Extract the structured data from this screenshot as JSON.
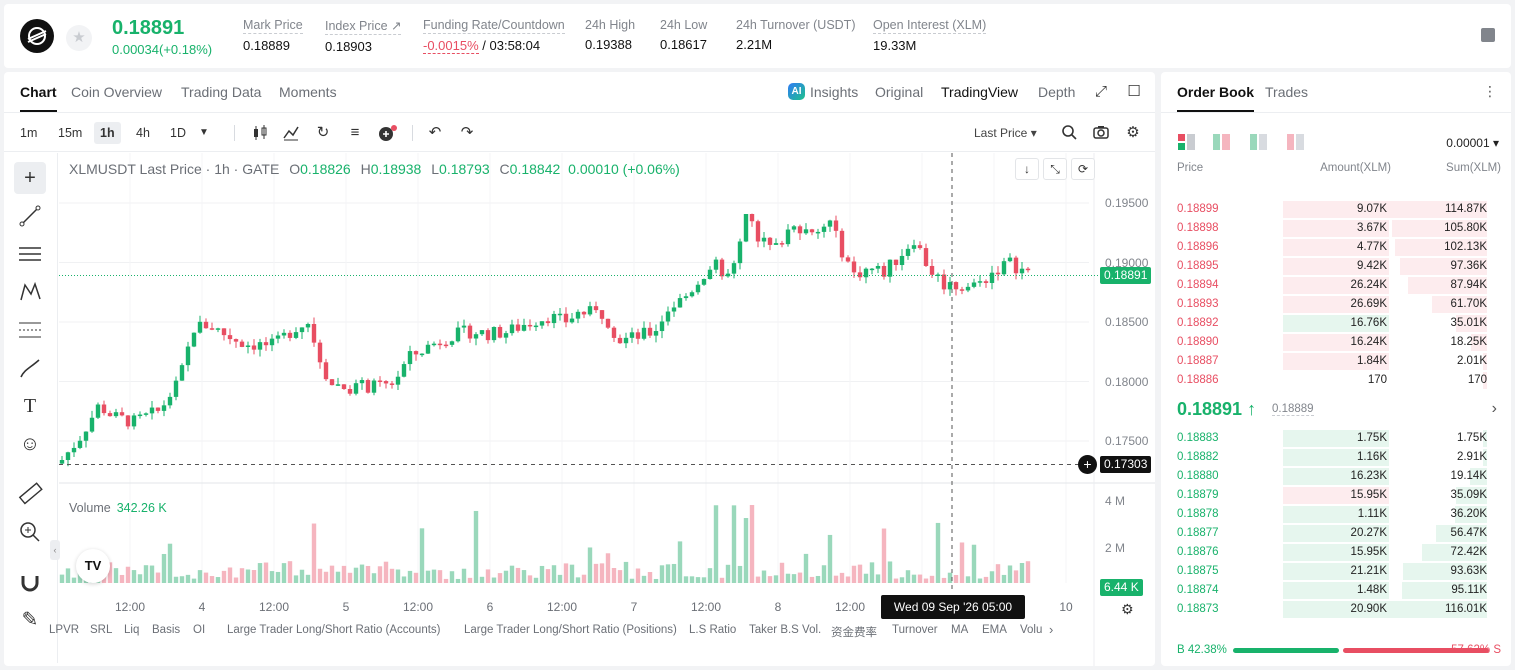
{
  "header": {
    "last_price": "0.18891",
    "change": "0.00034(+0.18%)",
    "stats": [
      {
        "label": "Mark Price",
        "value": "0.18889"
      },
      {
        "label": "Index Price ↗",
        "value": "0.18903"
      },
      {
        "label": "Funding Rate/Countdown",
        "value_neg": "-0.0015%",
        "value": "/ 03:58:04"
      },
      {
        "label": "24h High",
        "value": "0.19388"
      },
      {
        "label": "24h Low",
        "value": "0.18617"
      },
      {
        "label": "24h Turnover (USDT)",
        "value": "2.21M"
      },
      {
        "label": "Open Interest (XLM)",
        "value": "19.33M"
      }
    ]
  },
  "chart_tabs": [
    "Chart",
    "Coin Overview",
    "Trading Data",
    "Moments"
  ],
  "view_tabs": [
    "Insights",
    "Original",
    "TradingView",
    "Depth"
  ],
  "ai_badge": "AI",
  "timeframes": [
    "1m",
    "15m",
    "1h",
    "4h",
    "1D"
  ],
  "price_type": "Last Price ▾",
  "legend": {
    "symbol": "XLMUSDT Last Price · 1h · GATE",
    "o": "0.18826",
    "h": "0.18938",
    "l": "0.18793",
    "c": "0.18842",
    "chg": "0.00010 (+0.06%)"
  },
  "volume_legend": {
    "label": "Volume",
    "value": "342.26 K"
  },
  "y_ticks": [
    "0.19500",
    "0.19000",
    "0.18500",
    "0.18000",
    "0.17500"
  ],
  "vol_ticks": [
    "4 M",
    "2 M"
  ],
  "current_price_tag": "0.18891",
  "crosshair_price_tag": "0.17303",
  "volume_tag": "6.44 K",
  "x_ticks": [
    "12:00",
    "4",
    "12:00",
    "5",
    "12:00",
    "6",
    "12:00",
    "7",
    "12:00",
    "8",
    "12:00",
    "10"
  ],
  "crosshair_date": "Wed 09 Sep '26    05:00",
  "indicators": [
    "LPVR",
    "SRL",
    "Liq",
    "Basis",
    "OI",
    "Large Trader Long/Short Ratio (Accounts)",
    "Large Trader Long/Short Ratio (Positions)",
    "L.S Ratio",
    "Taker B.S Vol.",
    "资金费率",
    "Turnover",
    "MA",
    "EMA",
    "Volu"
  ],
  "order_book": {
    "tabs": [
      "Order Book",
      "Trades"
    ],
    "precision": "0.00001 ▾",
    "headers": [
      "Price",
      "Amount(XLM)",
      "Sum(XLM)"
    ],
    "asks": [
      {
        "price": "0.18899",
        "amount": "9.07K",
        "sum": "114.87K"
      },
      {
        "price": "0.18898",
        "amount": "3.67K",
        "sum": "105.80K"
      },
      {
        "price": "0.18896",
        "amount": "4.77K",
        "sum": "102.13K"
      },
      {
        "price": "0.18895",
        "amount": "9.42K",
        "sum": "97.36K"
      },
      {
        "price": "0.18894",
        "amount": "26.24K",
        "sum": "87.94K"
      },
      {
        "price": "0.18893",
        "amount": "26.69K",
        "sum": "61.70K"
      },
      {
        "price": "0.18892",
        "amount": "16.76K",
        "sum": "35.01K"
      },
      {
        "price": "0.18890",
        "amount": "16.24K",
        "sum": "18.25K"
      },
      {
        "price": "0.18887",
        "amount": "1.84K",
        "sum": "2.01K"
      },
      {
        "price": "0.18886",
        "amount": "170",
        "sum": "170"
      }
    ],
    "mid_price": "0.18891 ↑",
    "mid_mark": "0.18889",
    "bids": [
      {
        "price": "0.18883",
        "amount": "1.75K",
        "sum": "1.75K"
      },
      {
        "price": "0.18882",
        "amount": "1.16K",
        "sum": "2.91K"
      },
      {
        "price": "0.18880",
        "amount": "16.23K",
        "sum": "19.14K"
      },
      {
        "price": "0.18879",
        "amount": "15.95K",
        "sum": "35.09K"
      },
      {
        "price": "0.18878",
        "amount": "1.11K",
        "sum": "36.20K"
      },
      {
        "price": "0.18877",
        "amount": "20.27K",
        "sum": "56.47K"
      },
      {
        "price": "0.18876",
        "amount": "15.95K",
        "sum": "72.42K"
      },
      {
        "price": "0.18875",
        "amount": "21.21K",
        "sum": "93.63K"
      },
      {
        "price": "0.18874",
        "amount": "1.48K",
        "sum": "95.11K"
      },
      {
        "price": "0.18873",
        "amount": "20.90K",
        "sum": "116.01K"
      }
    ],
    "buy_pct": "B 42.38%",
    "sell_pct": "57.62% S",
    "buy_ratio": 0.4238
  },
  "colors": {
    "up": "#18b26b",
    "down": "#e84e62",
    "up_soft": "#e6f6ee",
    "down_soft": "#fdecee"
  }
}
